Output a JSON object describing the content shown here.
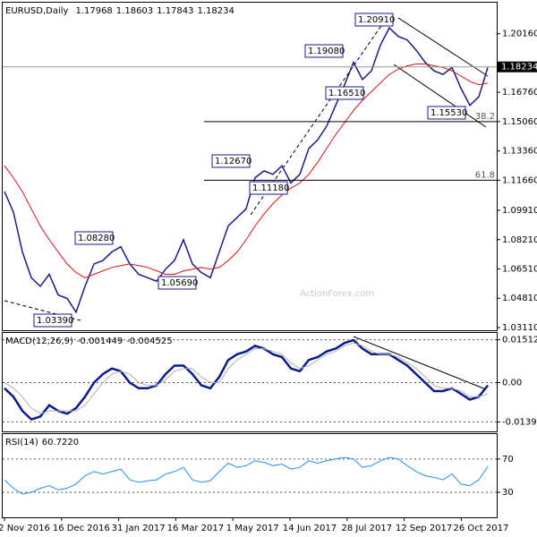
{
  "chart_data": [
    {
      "type": "line",
      "title": "EURUSD,Daily",
      "ohlc": [
        1.17968,
        1.18603,
        1.17843,
        1.18234
      ],
      "last": 1.18234,
      "watermark": "ActionForex.com",
      "ylim": [
        1.029,
        1.2196
      ],
      "yticks": [
        {
          "value": 1.2016,
          "label": "1.20160"
        },
        {
          "value": 1.1676,
          "label": "1.16760"
        },
        {
          "value": 1.1506,
          "label": "1.15060"
        },
        {
          "value": 1.1336,
          "label": "1.13360"
        },
        {
          "value": 1.1166,
          "label": "1.11660"
        },
        {
          "value": 1.0991,
          "label": "1.09910"
        },
        {
          "value": 1.0821,
          "label": "1.08210"
        },
        {
          "value": 1.0651,
          "label": "1.06510"
        },
        {
          "value": 1.0481,
          "label": "1.04810"
        },
        {
          "value": 1.0311,
          "label": "1.03110"
        }
      ],
      "levels": [
        "1.20910",
        "1.19080",
        "1.16510",
        "1.15530",
        "1.12670",
        "1.11180",
        "1.08280",
        "1.05690",
        "1.03390"
      ],
      "fib_levels": [
        {
          "value": 1.1506,
          "label": "38.2"
        },
        {
          "value": 1.1166,
          "label": "61.8"
        }
      ],
      "series": [
        {
          "name": "EURUSD",
          "color": "#1a1a8c",
          "values": [
            1.11,
            1.098,
            1.075,
            1.06,
            1.055,
            1.062,
            1.05,
            1.048,
            1.04,
            1.055,
            1.068,
            1.07,
            1.075,
            1.078,
            1.068,
            1.062,
            1.06,
            1.058,
            1.065,
            1.07,
            1.082,
            1.068,
            1.063,
            1.06,
            1.075,
            1.09,
            1.095,
            1.1,
            1.118,
            1.122,
            1.12,
            1.125,
            1.115,
            1.12,
            1.135,
            1.14,
            1.148,
            1.16,
            1.172,
            1.185,
            1.175,
            1.18,
            1.195,
            1.205,
            1.2,
            1.198,
            1.192,
            1.185,
            1.18,
            1.178,
            1.182,
            1.17,
            1.16,
            1.165,
            1.182
          ]
        },
        {
          "name": "MA",
          "color": "#e01010",
          "values": [
            1.125,
            1.118,
            1.11,
            1.1,
            1.09,
            1.082,
            1.075,
            1.068,
            1.063,
            1.06,
            1.062,
            1.064,
            1.066,
            1.067,
            1.068,
            1.067,
            1.066,
            1.064,
            1.062,
            1.062,
            1.064,
            1.065,
            1.066,
            1.065,
            1.066,
            1.07,
            1.075,
            1.082,
            1.09,
            1.097,
            1.103,
            1.108,
            1.112,
            1.115,
            1.12,
            1.127,
            1.135,
            1.143,
            1.15,
            1.157,
            1.163,
            1.168,
            1.173,
            1.178,
            1.181,
            1.183,
            1.184,
            1.184,
            1.183,
            1.182,
            1.18,
            1.177,
            1.174,
            1.172,
            1.173
          ]
        }
      ]
    },
    {
      "type": "line",
      "title": "MACD(12,26,9)",
      "current": [
        -0.001449,
        -0.004525
      ],
      "ylim": [
        -0.01724,
        0.01754
      ],
      "yticks": [
        0.01512,
        {
          "value": 0,
          "label": "0.00"
        },
        -0.013938
      ],
      "series": [
        {
          "name": "MACD",
          "color": "#0a1a8f",
          "values": [
            -0.002,
            -0.005,
            -0.01,
            -0.013,
            -0.012,
            -0.008,
            -0.01,
            -0.011,
            -0.009,
            -0.005,
            0.0,
            0.003,
            0.005,
            0.004,
            0.0,
            -0.002,
            -0.002,
            -0.001,
            0.003,
            0.006,
            0.006,
            0.003,
            -0.001,
            -0.002,
            0.002,
            0.008,
            0.01,
            0.011,
            0.013,
            0.012,
            0.01,
            0.009,
            0.005,
            0.004,
            0.008,
            0.009,
            0.011,
            0.012,
            0.014,
            0.015,
            0.012,
            0.01,
            0.01,
            0.01,
            0.008,
            0.006,
            0.003,
            0.0,
            -0.003,
            -0.003,
            -0.002,
            -0.004,
            -0.006,
            -0.005,
            -0.001
          ]
        },
        {
          "name": "Signal",
          "color": "#b0b0b0",
          "values": [
            0.0,
            -0.002,
            -0.005,
            -0.009,
            -0.011,
            -0.01,
            -0.01,
            -0.01,
            -0.01,
            -0.008,
            -0.004,
            0.0,
            0.003,
            0.004,
            0.003,
            0.0,
            -0.001,
            -0.001,
            0.001,
            0.004,
            0.005,
            0.005,
            0.002,
            0.0,
            0.0,
            0.005,
            0.008,
            0.01,
            0.012,
            0.012,
            0.011,
            0.01,
            0.007,
            0.005,
            0.006,
            0.008,
            0.01,
            0.011,
            0.013,
            0.014,
            0.013,
            0.011,
            0.01,
            0.01,
            0.009,
            0.007,
            0.005,
            0.002,
            -0.001,
            -0.002,
            -0.002,
            -0.003,
            -0.005,
            -0.005,
            -0.004
          ]
        }
      ]
    },
    {
      "type": "line",
      "title": "RSI(14)",
      "current": {
        "value": 60.722,
        "label": "60.7220"
      },
      "ylim": [
        0,
        100
      ],
      "yticks": [
        70,
        30
      ],
      "x_tick_labels": [
        "2 Nov 2016",
        "16 Dec 2016",
        "31 Jan 2017",
        "16 Mar 2017",
        "1 May 2017",
        "14 Jun 2017",
        "28 Jul 2017",
        "12 Sep 2017",
        "26 Oct 2017"
      ],
      "series": [
        {
          "name": "RSI",
          "color": "#1e90ff",
          "values": [
            45,
            35,
            28,
            30,
            35,
            38,
            33,
            35,
            40,
            50,
            55,
            52,
            55,
            58,
            45,
            42,
            44,
            45,
            52,
            55,
            60,
            45,
            42,
            44,
            55,
            65,
            60,
            62,
            68,
            66,
            62,
            64,
            58,
            60,
            68,
            65,
            68,
            70,
            72,
            70,
            60,
            62,
            68,
            72,
            70,
            62,
            55,
            50,
            48,
            45,
            52,
            40,
            38,
            45,
            61
          ]
        }
      ]
    }
  ]
}
